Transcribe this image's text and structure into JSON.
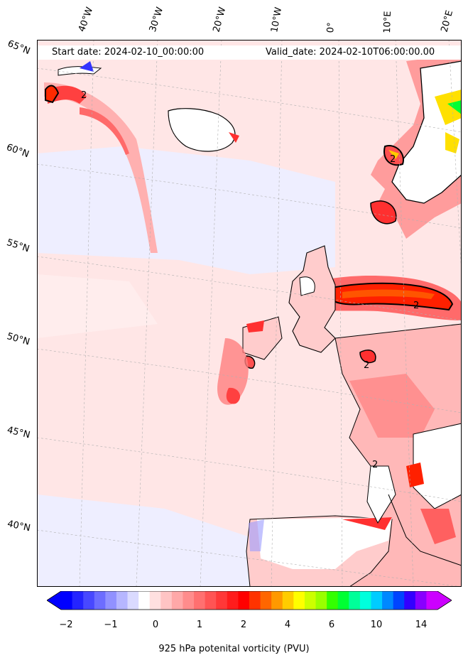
{
  "map": {
    "start_date": "Start date: 2024-02-10_00:00:00",
    "valid_date": "Valid_date: 2024-02-10T06:00:00.00",
    "longitude_labels": [
      "40°W",
      "30°W",
      "20°W",
      "10°W",
      "0°",
      "10°E",
      "20°E"
    ],
    "latitude_labels": [
      "65°N",
      "60°N",
      "55°N",
      "50°N",
      "45°N",
      "40°N"
    ],
    "contour_label": "2",
    "colorbar": {
      "title": "925 hPa potenital vorticity (PVU)",
      "ticks": [
        "−2",
        "−1",
        "0",
        "1",
        "2",
        "4",
        "6",
        "10",
        "14"
      ],
      "colors": [
        "#0000ff",
        "#2424ff",
        "#4848ff",
        "#6d6dff",
        "#9191ff",
        "#b6b6ff",
        "#dadaff",
        "#ffffff",
        "#ffe0e0",
        "#ffc4c4",
        "#ffa8a8",
        "#ff8c8c",
        "#ff7070",
        "#ff5454",
        "#ff3838",
        "#ff1c1c",
        "#ff0000",
        "#ff3300",
        "#ff6600",
        "#ff9900",
        "#ffcc00",
        "#ffff00",
        "#ccff00",
        "#99ff00",
        "#33ff00",
        "#00ff33",
        "#00ff99",
        "#00ffdd",
        "#00ccff",
        "#0088ff",
        "#0044ff",
        "#3300ff",
        "#8800ff",
        "#cc00ff"
      ]
    }
  }
}
